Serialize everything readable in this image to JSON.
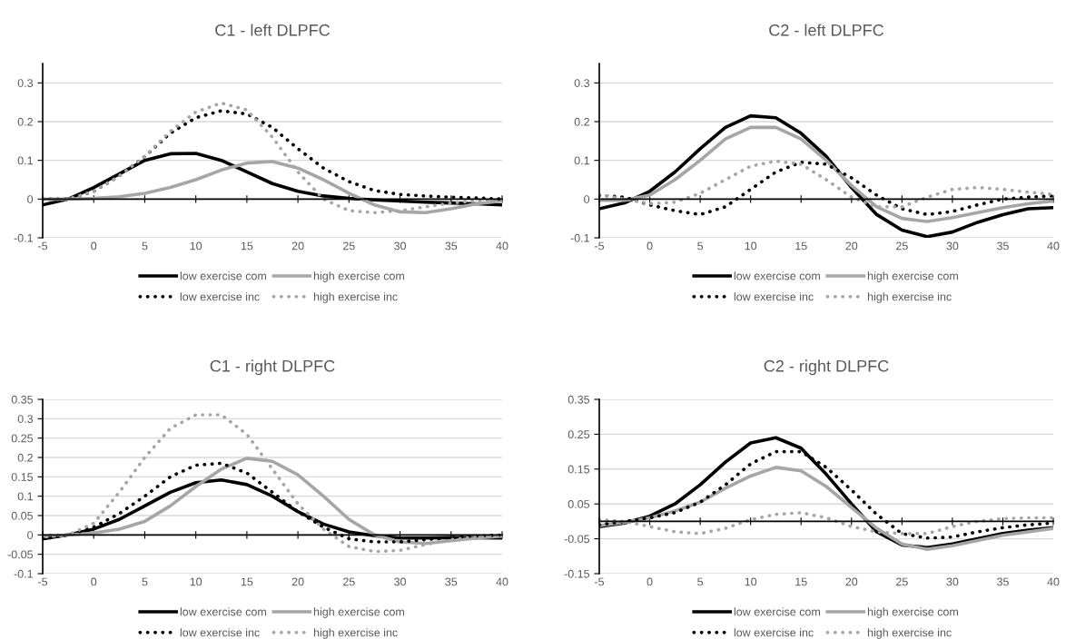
{
  "chart_data": [
    {
      "type": "line",
      "title": "C1 - left DLPFC",
      "x": [
        -5,
        -2.5,
        0,
        2.5,
        5,
        7.5,
        10,
        12.5,
        15,
        17.5,
        20,
        22.5,
        25,
        27.5,
        30,
        32.5,
        35,
        37.5,
        40
      ],
      "xlim": [
        -5,
        40
      ],
      "xticks": [
        -5,
        0,
        5,
        10,
        15,
        20,
        25,
        30,
        35,
        40
      ],
      "ylim": [
        -0.1,
        0.35
      ],
      "yticks": [
        -0.1,
        0,
        0.1,
        0.2,
        0.3
      ],
      "grid": "y",
      "legend": "bottom",
      "series": [
        {
          "name": "low exercise com",
          "color": "#000000",
          "line_style": "solid",
          "values": [
            -0.015,
            0.0,
            0.03,
            0.065,
            0.1,
            0.117,
            0.118,
            0.1,
            0.07,
            0.04,
            0.02,
            0.008,
            0.002,
            -0.002,
            -0.005,
            -0.008,
            -0.01,
            -0.012,
            -0.015
          ]
        },
        {
          "name": "high exercise com",
          "color": "#a6a6a6",
          "line_style": "solid",
          "values": [
            0,
            0,
            0.002,
            0.006,
            0.015,
            0.03,
            0.05,
            0.075,
            0.093,
            0.097,
            0.08,
            0.05,
            0.015,
            -0.015,
            -0.033,
            -0.035,
            -0.025,
            -0.012,
            -0.005
          ]
        },
        {
          "name": "low exercise inc",
          "color": "#000000",
          "line_style": "dotted",
          "values": [
            0,
            0,
            0.02,
            0.06,
            0.11,
            0.17,
            0.21,
            0.228,
            0.22,
            0.185,
            0.13,
            0.08,
            0.045,
            0.022,
            0.012,
            0.008,
            0.005,
            0.003,
            0.0
          ]
        },
        {
          "name": "high exercise inc",
          "color": "#a6a6a6",
          "line_style": "dotted",
          "values": [
            0,
            0,
            0.02,
            0.06,
            0.11,
            0.175,
            0.225,
            0.248,
            0.23,
            0.16,
            0.07,
            0.0,
            -0.03,
            -0.035,
            -0.03,
            -0.02,
            -0.01,
            -0.005,
            -0.002
          ]
        }
      ]
    },
    {
      "type": "line",
      "title": "C2 - left DLPFC",
      "x": [
        -5,
        -2.5,
        0,
        2.5,
        5,
        7.5,
        10,
        12.5,
        15,
        17.5,
        20,
        22.5,
        25,
        27.5,
        30,
        32.5,
        35,
        37.5,
        40
      ],
      "xlim": [
        -5,
        40
      ],
      "xticks": [
        -5,
        0,
        5,
        10,
        15,
        20,
        25,
        30,
        35,
        40
      ],
      "ylim": [
        -0.1,
        0.35
      ],
      "yticks": [
        -0.1,
        0,
        0.1,
        0.2,
        0.3
      ],
      "grid": "y",
      "legend": "bottom",
      "series": [
        {
          "name": "low exercise com",
          "color": "#000000",
          "line_style": "solid",
          "values": [
            -0.025,
            -0.01,
            0.02,
            0.07,
            0.13,
            0.185,
            0.215,
            0.21,
            0.17,
            0.11,
            0.03,
            -0.04,
            -0.08,
            -0.097,
            -0.085,
            -0.06,
            -0.04,
            -0.025,
            -0.022
          ]
        },
        {
          "name": "high exercise com",
          "color": "#a6a6a6",
          "line_style": "solid",
          "values": [
            -0.003,
            -0.003,
            0.01,
            0.05,
            0.1,
            0.155,
            0.185,
            0.185,
            0.155,
            0.1,
            0.035,
            -0.02,
            -0.05,
            -0.058,
            -0.048,
            -0.035,
            -0.022,
            -0.012,
            -0.005
          ]
        },
        {
          "name": "low exercise inc",
          "color": "#000000",
          "line_style": "dotted",
          "values": [
            0.01,
            0.005,
            -0.015,
            -0.03,
            -0.04,
            -0.02,
            0.025,
            0.07,
            0.095,
            0.09,
            0.055,
            0.01,
            -0.025,
            -0.04,
            -0.032,
            -0.015,
            0.0,
            0.005,
            0.008
          ]
        },
        {
          "name": "high exercise inc",
          "color": "#a6a6a6",
          "line_style": "dotted",
          "values": [
            0.012,
            0.0,
            -0.012,
            -0.008,
            0.015,
            0.05,
            0.085,
            0.098,
            0.09,
            0.05,
            0.005,
            -0.02,
            -0.02,
            0.005,
            0.025,
            0.03,
            0.025,
            0.018,
            0.012
          ]
        }
      ]
    },
    {
      "type": "line",
      "title": "C1 - right DLPFC",
      "x": [
        -5,
        -2.5,
        0,
        2.5,
        5,
        7.5,
        10,
        12.5,
        15,
        17.5,
        20,
        22.5,
        25,
        27.5,
        30,
        32.5,
        35,
        37.5,
        40
      ],
      "xlim": [
        -5,
        40
      ],
      "xticks": [
        -5,
        0,
        5,
        10,
        15,
        20,
        25,
        30,
        35,
        40
      ],
      "ylim": [
        -0.1,
        0.35
      ],
      "yticks": [
        -0.1,
        -0.05,
        0,
        0.05,
        0.1,
        0.15,
        0.2,
        0.25,
        0.3,
        0.35
      ],
      "grid": "y",
      "legend": "bottom",
      "series": [
        {
          "name": "low exercise com",
          "color": "#000000",
          "line_style": "solid",
          "values": [
            -0.01,
            0.0,
            0.015,
            0.04,
            0.075,
            0.11,
            0.135,
            0.142,
            0.13,
            0.1,
            0.06,
            0.028,
            0.008,
            -0.002,
            -0.008,
            -0.008,
            -0.007,
            -0.007,
            -0.008
          ]
        },
        {
          "name": "high exercise com",
          "color": "#a6a6a6",
          "line_style": "solid",
          "values": [
            -0.005,
            0.0,
            0.005,
            0.015,
            0.035,
            0.075,
            0.125,
            0.17,
            0.198,
            0.19,
            0.155,
            0.1,
            0.04,
            0.0,
            -0.018,
            -0.022,
            -0.015,
            -0.008,
            -0.003
          ]
        },
        {
          "name": "low exercise inc",
          "color": "#000000",
          "line_style": "dotted",
          "values": [
            -0.01,
            0.0,
            0.02,
            0.055,
            0.1,
            0.15,
            0.18,
            0.185,
            0.16,
            0.11,
            0.06,
            0.02,
            -0.01,
            -0.018,
            -0.018,
            -0.012,
            -0.007,
            -0.003,
            0.0
          ]
        },
        {
          "name": "high exercise inc",
          "color": "#a6a6a6",
          "line_style": "dotted",
          "values": [
            0.0,
            0.0,
            0.03,
            0.11,
            0.2,
            0.275,
            0.31,
            0.31,
            0.26,
            0.17,
            0.08,
            0.015,
            -0.03,
            -0.043,
            -0.04,
            -0.025,
            -0.012,
            -0.005,
            0.0
          ]
        }
      ]
    },
    {
      "type": "line",
      "title": "C2 - right DLPFC",
      "x": [
        -5,
        -2.5,
        0,
        2.5,
        5,
        7.5,
        10,
        12.5,
        15,
        17.5,
        20,
        22.5,
        25,
        27.5,
        30,
        32.5,
        35,
        37.5,
        40
      ],
      "xlim": [
        -5,
        40
      ],
      "xticks": [
        -5,
        0,
        5,
        10,
        15,
        20,
        25,
        30,
        35,
        40
      ],
      "ylim": [
        -0.15,
        0.35
      ],
      "yticks": [
        -0.15,
        -0.05,
        0.05,
        0.15,
        0.25,
        0.35
      ],
      "grid": "y",
      "legend": "bottom",
      "series": [
        {
          "name": "low exercise com",
          "color": "#000000",
          "line_style": "solid",
          "values": [
            -0.015,
            -0.005,
            0.015,
            0.05,
            0.105,
            0.17,
            0.225,
            0.24,
            0.21,
            0.135,
            0.05,
            -0.03,
            -0.068,
            -0.075,
            -0.065,
            -0.05,
            -0.035,
            -0.025,
            -0.018
          ]
        },
        {
          "name": "high exercise com",
          "color": "#a6a6a6",
          "line_style": "solid",
          "values": [
            -0.012,
            -0.003,
            0.01,
            0.03,
            0.055,
            0.095,
            0.13,
            0.155,
            0.145,
            0.1,
            0.04,
            -0.02,
            -0.065,
            -0.08,
            -0.07,
            -0.055,
            -0.04,
            -0.03,
            -0.02
          ]
        },
        {
          "name": "low exercise inc",
          "color": "#000000",
          "line_style": "dotted",
          "values": [
            -0.01,
            0.0,
            0.01,
            0.025,
            0.055,
            0.105,
            0.165,
            0.2,
            0.2,
            0.155,
            0.09,
            0.02,
            -0.035,
            -0.048,
            -0.045,
            -0.03,
            -0.018,
            -0.01,
            -0.005
          ]
        },
        {
          "name": "high exercise inc",
          "color": "#a6a6a6",
          "line_style": "dotted",
          "values": [
            0.005,
            0.0,
            -0.015,
            -0.03,
            -0.035,
            -0.02,
            0.005,
            0.02,
            0.025,
            0.01,
            -0.015,
            -0.03,
            -0.035,
            -0.035,
            -0.015,
            0.0,
            0.008,
            0.01,
            0.01
          ]
        }
      ]
    }
  ]
}
